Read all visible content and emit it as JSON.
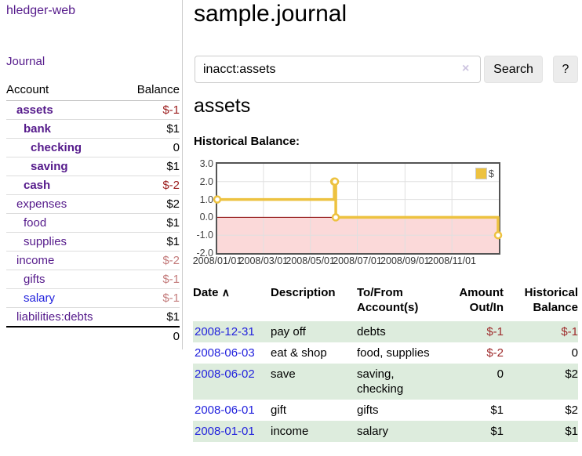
{
  "app": {
    "title": "hledger-web",
    "nav_journal": "Journal"
  },
  "header": {
    "title": "sample.journal"
  },
  "search": {
    "value": "inacct:assets",
    "clear_icon": "×",
    "button_label": "Search",
    "help_label": "?"
  },
  "main": {
    "account_title": "assets",
    "chart_label": "Historical Balance:"
  },
  "sidebar": {
    "accounts_header": {
      "account": "Account",
      "balance": "Balance"
    },
    "accounts": [
      {
        "name": "assets",
        "balance": "$-1",
        "depth": 1,
        "bold": true,
        "balance_style": "neg-strong"
      },
      {
        "name": "bank",
        "balance": "$1",
        "depth": 2,
        "bold": true,
        "balance_style": ""
      },
      {
        "name": "checking",
        "balance": "0",
        "depth": 3,
        "bold": true,
        "balance_style": ""
      },
      {
        "name": "saving",
        "balance": "$1",
        "depth": 3,
        "bold": true,
        "balance_style": ""
      },
      {
        "name": "cash",
        "balance": "$-2",
        "depth": 2,
        "bold": true,
        "balance_style": "neg-strong"
      },
      {
        "name": "expenses",
        "balance": "$2",
        "depth": 1,
        "bold": false,
        "balance_style": ""
      },
      {
        "name": "food",
        "balance": "$1",
        "depth": 2,
        "bold": false,
        "balance_style": ""
      },
      {
        "name": "supplies",
        "balance": "$1",
        "depth": 2,
        "bold": false,
        "balance_style": ""
      },
      {
        "name": "income",
        "balance": "$-2",
        "depth": 1,
        "bold": false,
        "balance_style": "neg-soft"
      },
      {
        "name": "gifts",
        "balance": "$-1",
        "depth": 2,
        "bold": false,
        "balance_style": "neg-soft"
      },
      {
        "name": "salary",
        "balance": "$-1",
        "depth": 2,
        "bold": false,
        "balance_style": "neg-soft",
        "link_style": "blue"
      },
      {
        "name": "liabilities:debts",
        "balance": "$1",
        "depth": 1,
        "bold": false,
        "balance_style": ""
      }
    ],
    "total": "0"
  },
  "chart_data": {
    "type": "line",
    "title": "Historical Balance",
    "step": true,
    "series": [
      {
        "name": "$",
        "color": "#edc240",
        "points": [
          [
            "2008-01-01",
            1
          ],
          [
            "2008-06-01",
            2
          ],
          [
            "2008-06-02",
            2
          ],
          [
            "2008-06-03",
            0
          ],
          [
            "2008-12-31",
            -1
          ]
        ]
      }
    ],
    "xrange": [
      "2008-01-01",
      "2009-01-01"
    ],
    "ylim": [
      -2,
      3
    ],
    "yticks": [
      "3.0",
      "2.0",
      "1.0",
      "0.0",
      "-1.0",
      "-2.0"
    ],
    "xticks": [
      "2008/01/01",
      "2008/03/01",
      "2008/05/01",
      "2008/07/01",
      "2008/09/01",
      "2008/11/01"
    ],
    "legend": "$",
    "legend_position": "top-right",
    "grid": true
  },
  "register": {
    "headers": {
      "date": "Date",
      "description": "Description",
      "accounts": "To/From Account(s)",
      "amount": "Amount Out/In",
      "balance": "Historical Balance"
    },
    "sort_indicator": "∧",
    "rows": [
      {
        "date": "2008-12-31",
        "description": "pay off",
        "accounts": "debts",
        "amount": "$-1",
        "balance": "$-1",
        "amount_negative": true,
        "balance_negative": true
      },
      {
        "date": "2008-06-03",
        "description": "eat & shop",
        "accounts": "food, supplies",
        "amount": "$-2",
        "balance": "0",
        "amount_negative": true,
        "balance_negative": false
      },
      {
        "date": "2008-06-02",
        "description": "save",
        "accounts": "saving, checking",
        "amount": "0",
        "balance": "$2",
        "amount_negative": false,
        "balance_negative": false
      },
      {
        "date": "2008-06-01",
        "description": "gift",
        "accounts": "gifts",
        "amount": "$1",
        "balance": "$2",
        "amount_negative": false,
        "balance_negative": false
      },
      {
        "date": "2008-01-01",
        "description": "income",
        "accounts": "salary",
        "amount": "$1",
        "balance": "$1",
        "amount_negative": false,
        "balance_negative": false
      }
    ]
  },
  "colors": {
    "link_purple": "#551a8b",
    "link_blue": "#2222dd",
    "neg_strong": "#9b1c1c",
    "neg_soft": "#c47c7c",
    "neg": "#9e2a2b",
    "row_stripe_green": "#ddecdd",
    "series_gold": "#edc240",
    "zero_line": "#8b0000",
    "negative_region": "#fbd9d9",
    "grid_line": "#e0e0e0",
    "button_bg": "#ececec",
    "border_gray": "#cccccc"
  }
}
